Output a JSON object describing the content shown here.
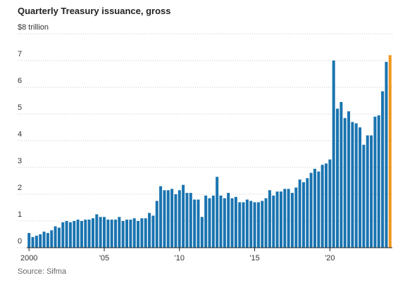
{
  "chart_data": {
    "type": "bar",
    "title": "Quarterly Treasury issuance, gross",
    "source": "Source: Sifma",
    "color": "#1a74b0",
    "highlight_x": 2024,
    "highlight_color": "#f0961e",
    "grid": true,
    "x": [
      2000,
      2000.25,
      2000.5,
      2000.75,
      2001,
      2001.25,
      2001.5,
      2001.75,
      2002,
      2002.25,
      2002.5,
      2002.75,
      2003,
      2003.25,
      2003.5,
      2003.75,
      2004,
      2004.25,
      2004.5,
      2004.75,
      2005,
      2005.25,
      2005.5,
      2005.75,
      2006,
      2006.25,
      2006.5,
      2006.75,
      2007,
      2007.25,
      2007.5,
      2007.75,
      2008,
      2008.25,
      2008.5,
      2008.75,
      2009,
      2009.25,
      2009.5,
      2009.75,
      2010,
      2010.25,
      2010.5,
      2010.75,
      2011,
      2011.25,
      2011.5,
      2011.75,
      2012,
      2012.25,
      2012.5,
      2012.75,
      2013,
      2013.25,
      2013.5,
      2013.75,
      2014,
      2014.25,
      2014.5,
      2014.75,
      2015,
      2015.25,
      2015.5,
      2015.75,
      2016,
      2016.25,
      2016.5,
      2016.75,
      2017,
      2017.25,
      2017.5,
      2017.75,
      2018,
      2018.25,
      2018.5,
      2018.75,
      2019,
      2019.25,
      2019.5,
      2019.75,
      2020,
      2020.25,
      2020.5,
      2020.75,
      2021,
      2021.25,
      2021.5,
      2021.75,
      2022,
      2022.25,
      2022.5,
      2022.75,
      2023,
      2023.25,
      2023.5,
      2023.75,
      2024
    ],
    "values": [
      0.55,
      0.4,
      0.45,
      0.5,
      0.6,
      0.55,
      0.65,
      0.8,
      0.75,
      0.95,
      1.0,
      0.95,
      1.0,
      1.05,
      1.0,
      1.05,
      1.05,
      1.1,
      1.25,
      1.15,
      1.15,
      1.05,
      1.05,
      1.05,
      1.15,
      1.0,
      1.05,
      1.05,
      1.1,
      1.0,
      1.1,
      1.1,
      1.3,
      1.2,
      1.75,
      2.3,
      2.15,
      2.15,
      2.2,
      2.0,
      2.15,
      2.35,
      2.05,
      2.05,
      1.8,
      1.8,
      1.15,
      1.95,
      1.85,
      1.95,
      2.65,
      1.95,
      1.85,
      2.05,
      1.85,
      1.9,
      1.7,
      1.7,
      1.8,
      1.75,
      1.7,
      1.7,
      1.75,
      1.85,
      2.15,
      1.95,
      2.1,
      2.1,
      2.2,
      2.2,
      2.05,
      2.25,
      2.55,
      2.45,
      2.6,
      2.8,
      2.95,
      2.85,
      3.1,
      3.15,
      3.3,
      7.0,
      5.2,
      5.45,
      4.85,
      5.1,
      4.7,
      4.65,
      4.5,
      3.85,
      4.2,
      4.2,
      4.9,
      4.95,
      5.85,
      6.95,
      7.2
    ],
    "xlim": [
      1999.85,
      2024.15
    ],
    "xticks": [
      {
        "value": 2000,
        "label": "2000"
      },
      {
        "value": 2005,
        "label": "'05"
      },
      {
        "value": 2010,
        "label": "'10"
      },
      {
        "value": 2015,
        "label": "'15"
      },
      {
        "value": 2020,
        "label": "'20"
      }
    ],
    "ylim": [
      0,
      8
    ],
    "yticks": [
      0,
      1,
      2,
      3,
      4,
      5,
      6,
      7,
      {
        "value": 8,
        "label": "$8 trillion"
      }
    ]
  }
}
